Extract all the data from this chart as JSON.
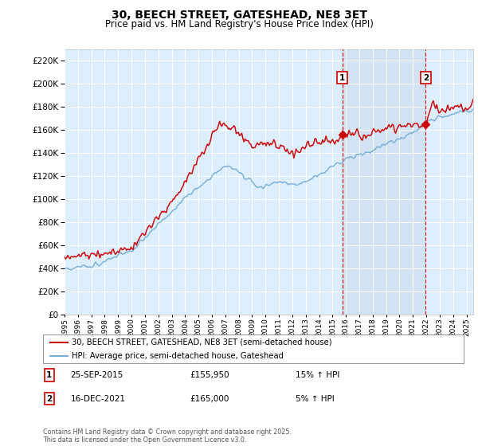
{
  "title": "30, BEECH STREET, GATESHEAD, NE8 3ET",
  "subtitle": "Price paid vs. HM Land Registry's House Price Index (HPI)",
  "legend_line1": "30, BEECH STREET, GATESHEAD, NE8 3ET (semi-detached house)",
  "legend_line2": "HPI: Average price, semi-detached house, Gateshead",
  "annotation1_date": "25-SEP-2015",
  "annotation1_price": "£155,950",
  "annotation1_hpi": "15% ↑ HPI",
  "annotation2_date": "16-DEC-2021",
  "annotation2_price": "£165,000",
  "annotation2_hpi": "5% ↑ HPI",
  "sale1_year": 2015.73,
  "sale1_price": 155950,
  "sale2_year": 2021.96,
  "sale2_price": 165000,
  "red_color": "#cc0000",
  "blue_color": "#7aafd4",
  "shade_color": "#ccdff0",
  "background_color": "#ddeeff",
  "grid_color": "#ffffff",
  "footer": "Contains HM Land Registry data © Crown copyright and database right 2025.\nThis data is licensed under the Open Government Licence v3.0.",
  "ylim": [
    0,
    230000
  ],
  "ytick_step": 20000,
  "xlim_start": 1995,
  "xlim_end": 2025.5
}
